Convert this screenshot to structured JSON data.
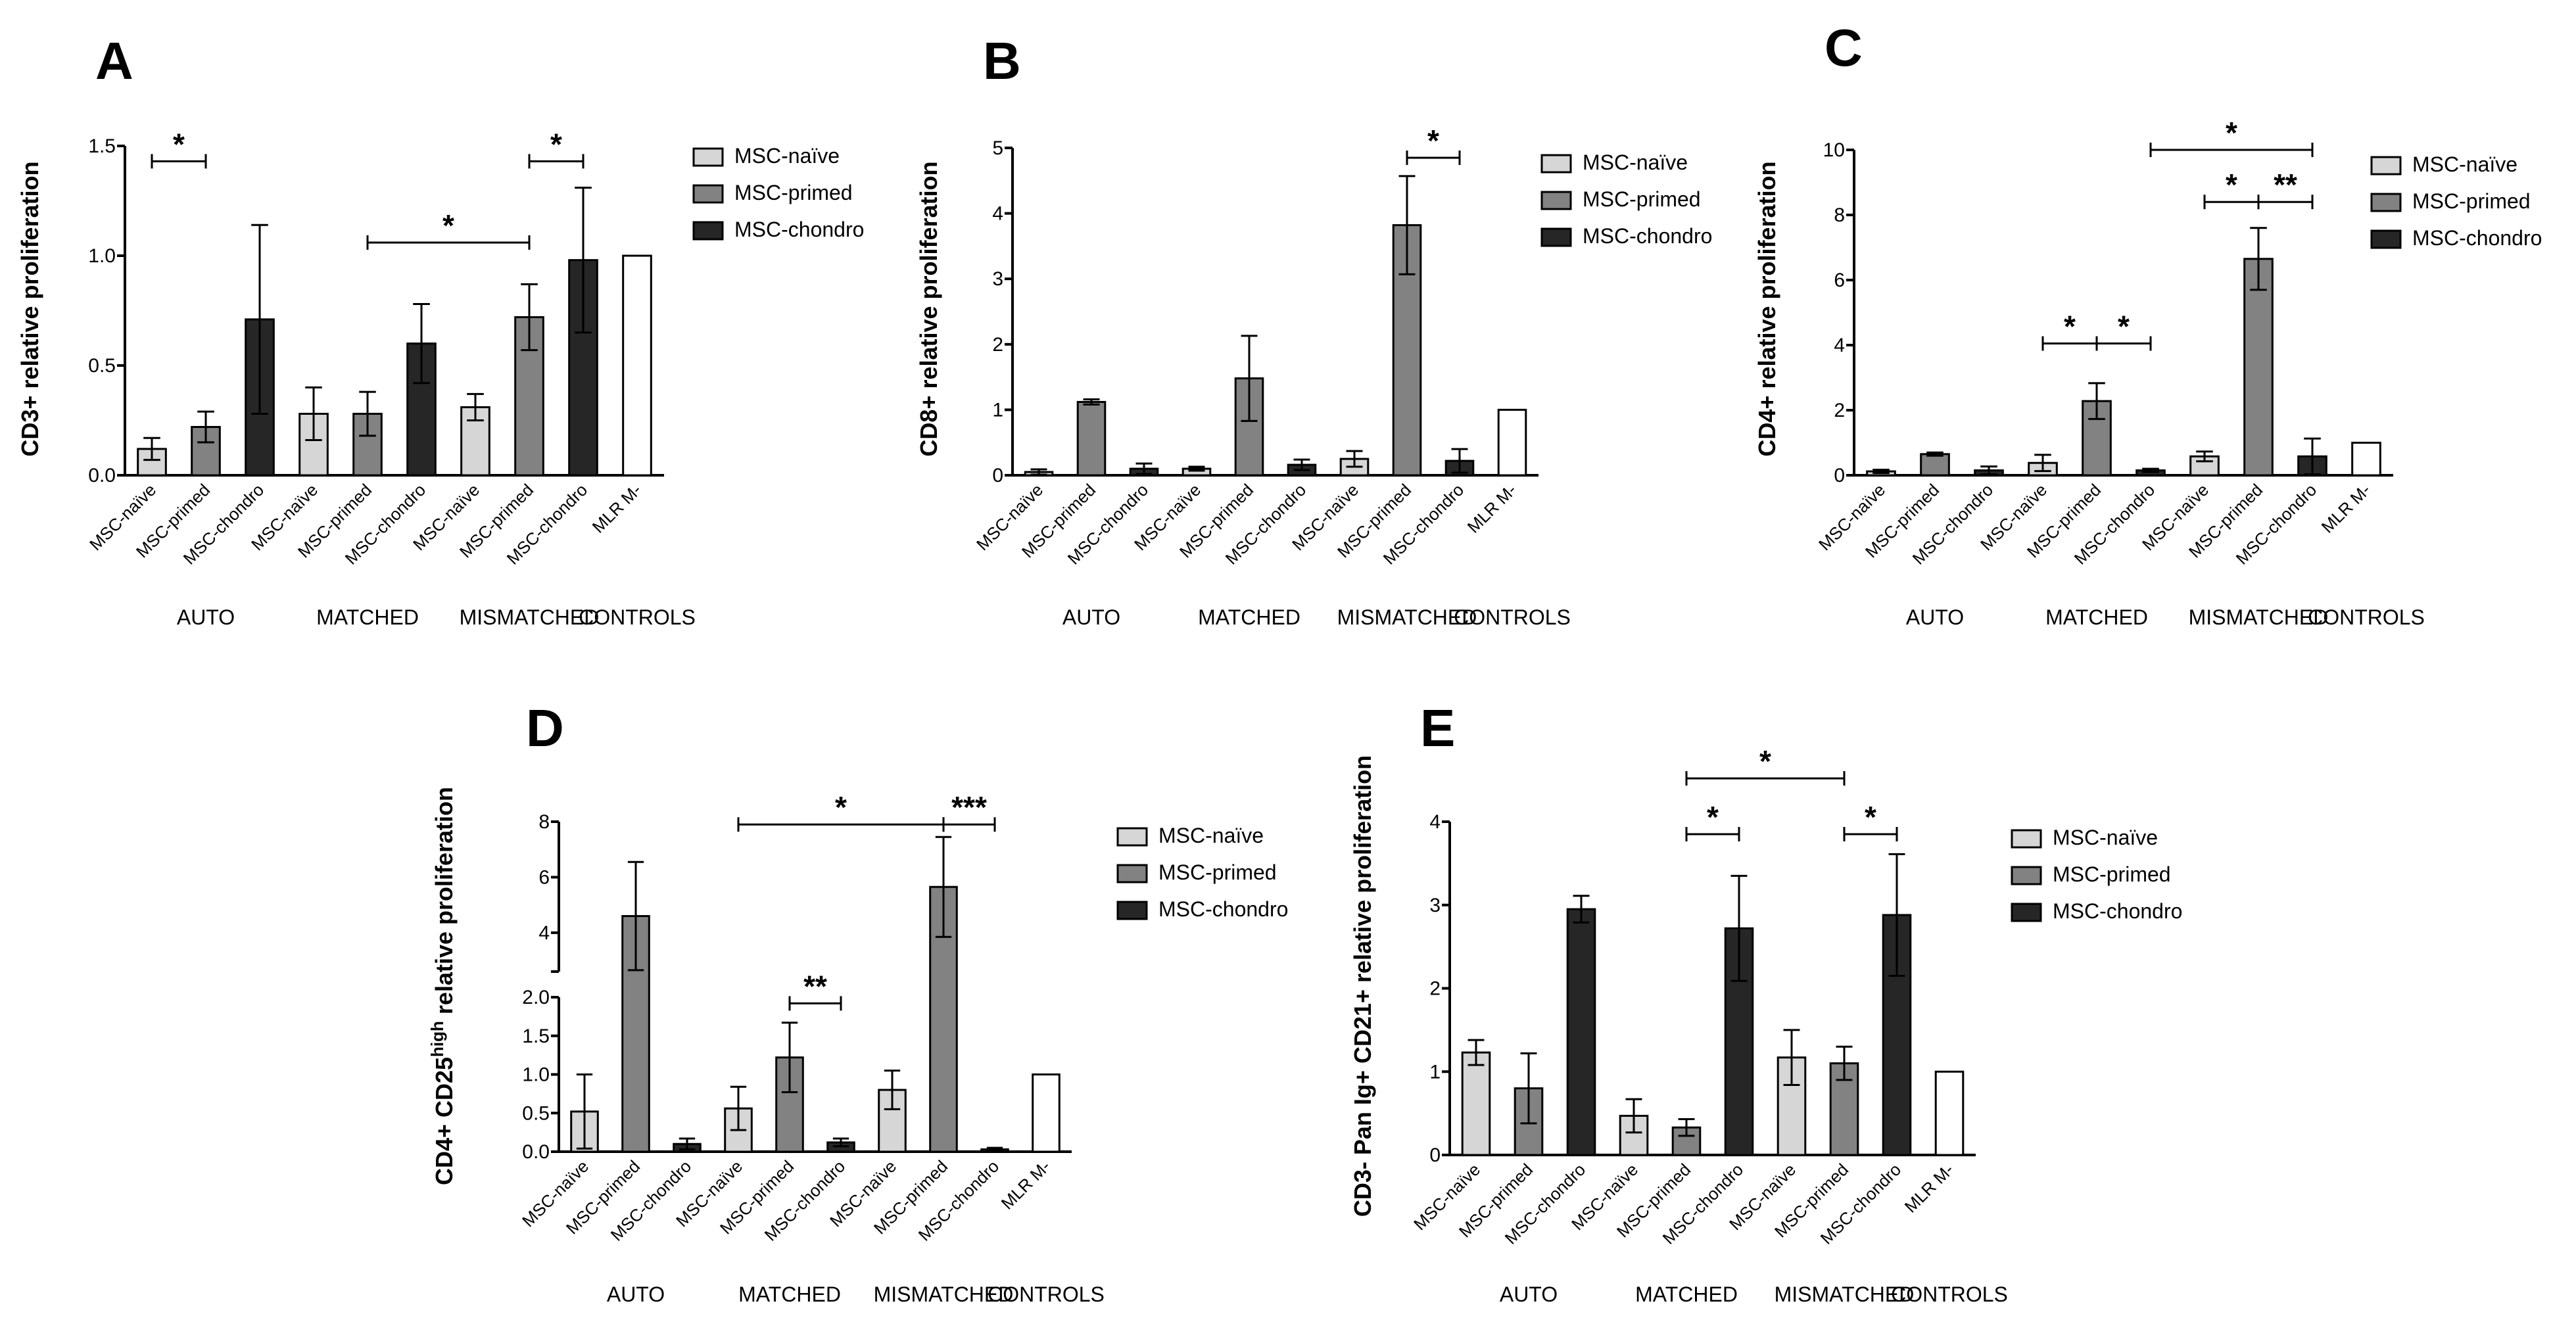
{
  "colors": {
    "naive": "#d6d6d6",
    "primed": "#828282",
    "chondro": "#262626",
    "control": "#ffffff"
  },
  "legend": [
    "MSC-naïve",
    "MSC-primed",
    "MSC-chondro"
  ],
  "groups": [
    "AUTO",
    "MATCHED",
    "MISMATCHED",
    "CONTROLS"
  ],
  "bar_labels": [
    "MSC-naïve",
    "MSC-primed",
    "MSC-chondro",
    "MLR M-"
  ],
  "chart_data": [
    {
      "id": "A",
      "type": "bar",
      "ylabel": "CD3+ relative proliferation",
      "ylim": [
        0,
        1.5
      ],
      "yticks": [
        "0.0",
        "0.5",
        "1.0",
        "1.5"
      ],
      "values": [
        0.12,
        0.22,
        0.71,
        0.28,
        0.28,
        0.6,
        0.31,
        0.72,
        0.98,
        1.0
      ],
      "errors": [
        0.05,
        0.07,
        0.43,
        0.12,
        0.1,
        0.18,
        0.06,
        0.15,
        0.33,
        0
      ],
      "brackets": [
        {
          "from": 0,
          "to": 1,
          "y": 1.43,
          "label": "*"
        },
        {
          "from": 4,
          "to": 7,
          "y": 1.06,
          "label": "*"
        },
        {
          "from": 7,
          "to": 8,
          "y": 1.43,
          "label": "*"
        }
      ]
    },
    {
      "id": "B",
      "type": "bar",
      "ylabel": "CD8+ relative proliferation",
      "ylim": [
        0,
        5
      ],
      "yticks": [
        "0",
        "1",
        "2",
        "3",
        "4",
        "5"
      ],
      "values": [
        0.05,
        1.12,
        0.1,
        0.1,
        1.48,
        0.16,
        0.25,
        3.82,
        0.22,
        1.0
      ],
      "errors": [
        0.04,
        0.04,
        0.08,
        0.03,
        0.65,
        0.08,
        0.12,
        0.75,
        0.18,
        0
      ],
      "brackets": [
        {
          "from": 7,
          "to": 8,
          "y": 4.85,
          "label": "*"
        }
      ]
    },
    {
      "id": "C",
      "type": "bar",
      "ylabel": "CD4+ relative proliferation",
      "ylim": [
        0,
        10
      ],
      "yticks": [
        "0",
        "2",
        "4",
        "6",
        "8",
        "10"
      ],
      "values": [
        0.12,
        0.65,
        0.15,
        0.38,
        2.28,
        0.15,
        0.58,
        6.65,
        0.58,
        1.0
      ],
      "errors": [
        0.05,
        0.05,
        0.12,
        0.25,
        0.55,
        0.05,
        0.15,
        0.95,
        0.55,
        0
      ],
      "brackets": [
        {
          "from": 3,
          "to": 4,
          "y": 4.05,
          "label": "*"
        },
        {
          "from": 4,
          "to": 5,
          "y": 4.05,
          "label": "*"
        },
        {
          "from": 6,
          "to": 7,
          "y": 8.4,
          "label": "*"
        },
        {
          "from": 7,
          "to": 8,
          "y": 8.4,
          "label": "**"
        },
        {
          "from": 5,
          "to": 8,
          "y": 10.0,
          "label": "*"
        }
      ]
    },
    {
      "id": "D",
      "type": "bar",
      "ylabel": "CD4+ CD25",
      "ylabel_sup": "high",
      "ylabel_after": " relative proliferation",
      "broken_axis": {
        "lower": [
          0,
          2.0
        ],
        "upper": [
          2.6,
          8.0
        ]
      },
      "yticks_lower": [
        "0.0",
        "0.5",
        "1.0",
        "1.5",
        "2.0"
      ],
      "yticks_upper": [
        "4",
        "6",
        "8"
      ],
      "values": [
        0.52,
        4.6,
        0.1,
        0.56,
        1.22,
        0.12,
        0.8,
        5.65,
        0.03,
        1.0
      ],
      "errors": [
        0.48,
        1.95,
        0.07,
        0.28,
        0.45,
        0.05,
        0.25,
        1.8,
        0.02,
        0
      ],
      "brackets": [
        {
          "from": 4,
          "to": 5,
          "y": 1.92,
          "label": "**"
        },
        {
          "from": 3,
          "to": 7,
          "y": 7.9,
          "label": "*"
        },
        {
          "from": 7,
          "to": 8,
          "y": 7.9,
          "label": "***"
        }
      ]
    },
    {
      "id": "E",
      "type": "bar",
      "ylabel": "CD3- Pan Ig+ CD21+ relative proliferation",
      "ylim": [
        0,
        4
      ],
      "yticks": [
        "0",
        "1",
        "2",
        "3",
        "4"
      ],
      "values": [
        1.23,
        0.8,
        2.95,
        0.47,
        0.33,
        2.72,
        1.17,
        1.1,
        2.88,
        1.0
      ],
      "errors": [
        0.15,
        0.42,
        0.16,
        0.2,
        0.1,
        0.63,
        0.33,
        0.2,
        0.73,
        0
      ],
      "brackets": [
        {
          "from": 4,
          "to": 5,
          "y": 3.85,
          "label": "*"
        },
        {
          "from": 7,
          "to": 8,
          "y": 3.85,
          "label": "*"
        },
        {
          "from": 4,
          "to": 7,
          "y": 4.52,
          "label": "*"
        }
      ]
    }
  ]
}
